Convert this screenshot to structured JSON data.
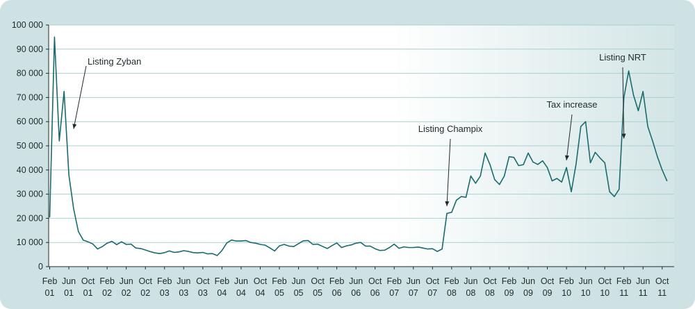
{
  "colors": {
    "series": "#1a6b6e",
    "grid": "#a9d0d1",
    "axis": "#1e2a2c"
  },
  "chart_data": {
    "type": "line",
    "title": "",
    "xlabel": "",
    "ylabel": "",
    "ylim": [
      0,
      100000
    ],
    "grid": "horizontal",
    "x_ticks": [
      {
        "m": 1,
        "line1": "Feb",
        "line2": "01"
      },
      {
        "m": 5,
        "line1": "Jun",
        "line2": "01"
      },
      {
        "m": 9,
        "line1": "Oct",
        "line2": "01"
      },
      {
        "m": 13,
        "line1": "Feb",
        "line2": "02"
      },
      {
        "m": 17,
        "line1": "Jun",
        "line2": "02"
      },
      {
        "m": 21,
        "line1": "Oct",
        "line2": "02"
      },
      {
        "m": 25,
        "line1": "Feb",
        "line2": "03"
      },
      {
        "m": 29,
        "line1": "Jun",
        "line2": "03"
      },
      {
        "m": 33,
        "line1": "Oct",
        "line2": "03"
      },
      {
        "m": 37,
        "line1": "Feb",
        "line2": "04"
      },
      {
        "m": 41,
        "line1": "Jun",
        "line2": "04"
      },
      {
        "m": 45,
        "line1": "Oct",
        "line2": "04"
      },
      {
        "m": 49,
        "line1": "Feb",
        "line2": "05"
      },
      {
        "m": 53,
        "line1": "Jun",
        "line2": "05"
      },
      {
        "m": 57,
        "line1": "Oct",
        "line2": "05"
      },
      {
        "m": 61,
        "line1": "Feb",
        "line2": "06"
      },
      {
        "m": 65,
        "line1": "Jun",
        "line2": "06"
      },
      {
        "m": 69,
        "line1": "Oct",
        "line2": "06"
      },
      {
        "m": 73,
        "line1": "Feb",
        "line2": "07"
      },
      {
        "m": 77,
        "line1": "Jun",
        "line2": "07"
      },
      {
        "m": 81,
        "line1": "Oct",
        "line2": "07"
      },
      {
        "m": 85,
        "line1": "Feb",
        "line2": "08"
      },
      {
        "m": 89,
        "line1": "Jun",
        "line2": "08"
      },
      {
        "m": 93,
        "line1": "Oct",
        "line2": "08"
      },
      {
        "m": 97,
        "line1": "Feb",
        "line2": "09"
      },
      {
        "m": 101,
        "line1": "Jun",
        "line2": "09"
      },
      {
        "m": 105,
        "line1": "Oct",
        "line2": "09"
      },
      {
        "m": 109,
        "line1": "Feb",
        "line2": "10"
      },
      {
        "m": 113,
        "line1": "Jun",
        "line2": "10"
      },
      {
        "m": 117,
        "line1": "Oct",
        "line2": "10"
      },
      {
        "m": 121,
        "line1": "Feb",
        "line2": "11"
      },
      {
        "m": 125,
        "line1": "Jun",
        "line2": "11"
      },
      {
        "m": 129,
        "line1": "Oct",
        "line2": "11"
      }
    ],
    "y_ticks": [
      {
        "v": 0,
        "label": "0"
      },
      {
        "v": 10000,
        "label": "10 000"
      },
      {
        "v": 20000,
        "label": "20 000"
      },
      {
        "v": 30000,
        "label": "30 000"
      },
      {
        "v": 40000,
        "label": "40 000"
      },
      {
        "v": 50000,
        "label": "50 000"
      },
      {
        "v": 60000,
        "label": "60 000"
      },
      {
        "v": 70000,
        "label": "70 000"
      },
      {
        "v": 80000,
        "label": "80 000"
      },
      {
        "v": 90000,
        "label": "90 000"
      },
      {
        "v": 100000,
        "label": "100 000"
      }
    ],
    "series": [
      {
        "x_start": "Feb 01",
        "values": [
          20500,
          95000,
          52000,
          72500,
          38000,
          24000,
          14500,
          11000,
          10300,
          9400,
          7300,
          8300,
          9700,
          10500,
          9100,
          10300,
          9200,
          9300,
          7700,
          7500,
          6900,
          6200,
          5700,
          5400,
          5800,
          6500,
          5900,
          6100,
          6600,
          6300,
          5800,
          5700,
          5900,
          5300,
          5400,
          4600,
          6700,
          9800,
          11000,
          10600,
          10600,
          10800,
          10000,
          9700,
          9200,
          8900,
          7800,
          6500,
          8600,
          9200,
          8500,
          8300,
          9500,
          10700,
          10800,
          9200,
          9300,
          8400,
          7500,
          8700,
          9800,
          7900,
          8600,
          9000,
          9700,
          10000,
          8500,
          8500,
          7400,
          6700,
          6800,
          7900,
          9300,
          7600,
          8200,
          7900,
          7900,
          8100,
          7700,
          7300,
          7400,
          6300,
          7300,
          22000,
          22500,
          27500,
          29000,
          28700,
          37500,
          34500,
          37500,
          47000,
          42300,
          36000,
          34000,
          37500,
          45500,
          45200,
          41800,
          42200,
          47000,
          43300,
          42300,
          43800,
          41000,
          35500,
          36500,
          35000,
          41000,
          31000,
          42500,
          58000,
          60000,
          43000,
          47300,
          45000,
          43000,
          31000,
          29000,
          32000,
          70000,
          81000,
          71000,
          64500,
          72500,
          58000,
          52000,
          45500,
          40000,
          35500
        ]
      }
    ],
    "annotations": [
      {
        "text": "Listing Zyban",
        "m": 6,
        "value": 57000
      },
      {
        "text": "Listing Champix",
        "m": 84,
        "value": 25000
      },
      {
        "text": "Tax increase",
        "m": 109,
        "value": 44000
      },
      {
        "text": "Listing NRT",
        "m": 121,
        "value": 53000
      }
    ]
  }
}
